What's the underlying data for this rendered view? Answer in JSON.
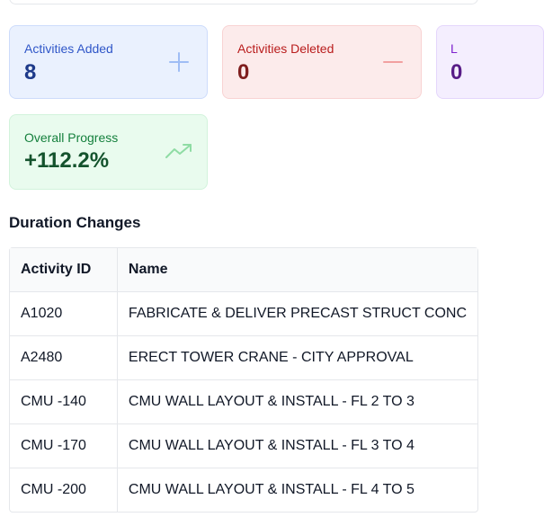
{
  "summary_cards": {
    "added": {
      "label": "Activities Added",
      "value": "8",
      "icon": "plus-icon",
      "accent": "#2f56c8"
    },
    "deleted": {
      "label": "Activities Deleted",
      "value": "0",
      "icon": "minus-icon",
      "accent": "#b91c1c"
    },
    "logic": {
      "label": "L",
      "value": "0",
      "accent": "#7e22ce"
    },
    "progress": {
      "label": "Overall Progress",
      "value": "+112.2%",
      "icon": "trending-up-icon",
      "accent": "#15803d"
    }
  },
  "duration_changes": {
    "title": "Duration Changes",
    "columns": [
      "Activity ID",
      "Name"
    ],
    "rows": [
      {
        "id": "A1020",
        "name": "FABRICATE & DELIVER PRECAST STRUCT CONC"
      },
      {
        "id": "A2480",
        "name": "ERECT TOWER CRANE - CITY APPROVAL"
      },
      {
        "id": "CMU -140",
        "name": "CMU WALL LAYOUT & INSTALL - FL 2 TO 3"
      },
      {
        "id": "CMU -170",
        "name": "CMU WALL LAYOUT & INSTALL - FL 3 TO 4"
      },
      {
        "id": "CMU -200",
        "name": "CMU WALL LAYOUT & INSTALL - FL 4 TO 5"
      }
    ]
  }
}
